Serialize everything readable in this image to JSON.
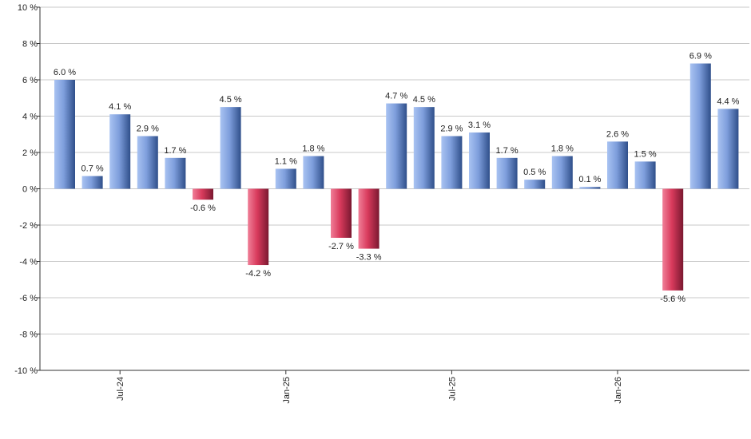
{
  "chart_data": {
    "type": "bar",
    "title": "",
    "xlabel": "",
    "ylabel": "",
    "ylim": [
      -10,
      10
    ],
    "y_ticks": [
      10,
      8,
      6,
      4,
      2,
      0,
      -2,
      -4,
      -6,
      -8,
      -10
    ],
    "y_tick_labels": [
      "10 %",
      "8 %",
      "6 %",
      "4 %",
      "2 %",
      "0 %",
      "-2 %",
      "-4 %",
      "-6 %",
      "-8 %",
      "-10 %"
    ],
    "x_tick_labels": [
      {
        "label": "Jul-24",
        "index": 2
      },
      {
        "label": "Jan-25",
        "index": 8
      },
      {
        "label": "Jul-25",
        "index": 14
      },
      {
        "label": "Jan-26",
        "index": 20
      }
    ],
    "values": [
      6.0,
      0.7,
      4.1,
      2.9,
      1.7,
      -0.6,
      4.5,
      -4.2,
      1.1,
      1.8,
      -2.7,
      -3.3,
      4.7,
      4.5,
      2.9,
      3.1,
      1.7,
      0.5,
      1.8,
      0.1,
      2.6,
      1.5,
      -5.6,
      6.9,
      4.4
    ],
    "value_labels": [
      "6.0 %",
      "0.7 %",
      "4.1 %",
      "2.9 %",
      "1.7 %",
      "-0.6 %",
      "4.5 %",
      "-4.2 %",
      "1.1 %",
      "1.8 %",
      "-2.7 %",
      "-3.3 %",
      "4.7 %",
      "4.5 %",
      "2.9 %",
      "3.1 %",
      "1.7 %",
      "0.5 %",
      "1.8 %",
      "0.1 %",
      "2.6 %",
      "1.5 %",
      "-5.6 %",
      "6.9 %",
      "4.4 %"
    ],
    "grid": true,
    "colors": {
      "positive_light": "#a9c3f2",
      "positive_mid": "#6f8fd0",
      "positive_dark": "#2f4f8a",
      "negative_light": "#f07f98",
      "negative_mid": "#d83a5c",
      "negative_dark": "#7a1830"
    }
  }
}
